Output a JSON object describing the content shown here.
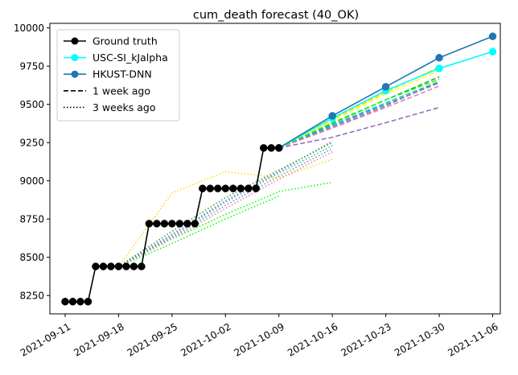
{
  "chart_data": {
    "type": "line",
    "title": "cum_death forecast (40_OK)",
    "xlabel": "",
    "ylabel": "",
    "x_ticks": [
      "2021-09-11",
      "2021-09-18",
      "2021-09-25",
      "2021-10-02",
      "2021-10-09",
      "2021-10-16",
      "2021-10-23",
      "2021-10-30",
      "2021-11-06"
    ],
    "y_ticks": [
      8250,
      8500,
      8750,
      9000,
      9250,
      9500,
      9750,
      10000
    ],
    "xlim": [
      "2021-09-09",
      "2021-11-07"
    ],
    "ylim": [
      8130,
      10030
    ],
    "legend_position": "top-left",
    "legend": [
      {
        "label": "Ground truth",
        "style": "solid-marker",
        "color": "#000000"
      },
      {
        "label": "USC-SI_kJalpha",
        "style": "solid-marker",
        "color": "#00ffff"
      },
      {
        "label": "HKUST-DNN",
        "style": "solid-marker",
        "color": "#1f77b4"
      },
      {
        "label": "1 week ago",
        "style": "dashed",
        "color": "#000000"
      },
      {
        "label": "3 weeks ago",
        "style": "dotted",
        "color": "#000000"
      }
    ],
    "series": [
      {
        "name": "Ground truth",
        "color": "#000000",
        "style": "solid",
        "marker": true,
        "x": [
          "2021-09-11",
          "2021-09-12",
          "2021-09-13",
          "2021-09-14",
          "2021-09-15",
          "2021-09-16",
          "2021-09-17",
          "2021-09-18",
          "2021-09-19",
          "2021-09-20",
          "2021-09-21",
          "2021-09-22",
          "2021-09-23",
          "2021-09-24",
          "2021-09-25",
          "2021-09-26",
          "2021-09-27",
          "2021-09-28",
          "2021-09-29",
          "2021-09-30",
          "2021-10-01",
          "2021-10-02",
          "2021-10-03",
          "2021-10-04",
          "2021-10-05",
          "2021-10-06",
          "2021-10-07",
          "2021-10-08",
          "2021-10-09"
        ],
        "y": [
          8210,
          8210,
          8210,
          8210,
          8440,
          8440,
          8440,
          8440,
          8440,
          8440,
          8440,
          8720,
          8720,
          8720,
          8720,
          8720,
          8720,
          8720,
          8950,
          8950,
          8950,
          8950,
          8950,
          8950,
          8950,
          8950,
          9215,
          9215,
          9215
        ]
      },
      {
        "name": "USC-SI_kJalpha",
        "color": "#00ffff",
        "style": "solid",
        "marker": true,
        "x": [
          "2021-10-09",
          "2021-10-16",
          "2021-10-23",
          "2021-10-30",
          "2021-11-06"
        ],
        "y": [
          9215,
          9410,
          9590,
          9735,
          9845
        ]
      },
      {
        "name": "HKUST-DNN",
        "color": "#1f77b4",
        "style": "solid",
        "marker": true,
        "x": [
          "2021-10-09",
          "2021-10-16",
          "2021-10-23",
          "2021-10-30",
          "2021-11-06"
        ],
        "y": [
          9215,
          9425,
          9615,
          9805,
          9945
        ]
      },
      {
        "color": "#ffd700",
        "style": "dashed",
        "x": [
          "2021-10-09",
          "2021-10-16",
          "2021-10-23",
          "2021-10-30"
        ],
        "y": [
          9215,
          9405,
          9580,
          9745
        ]
      },
      {
        "color": "#ffff00",
        "style": "dashed",
        "x": [
          "2021-10-09",
          "2021-10-16",
          "2021-10-23",
          "2021-10-30"
        ],
        "y": [
          9215,
          9395,
          9570,
          9720
        ]
      },
      {
        "color": "#2ca02c",
        "style": "dashed",
        "x": [
          "2021-10-09",
          "2021-10-16",
          "2021-10-23",
          "2021-10-30"
        ],
        "y": [
          9215,
          9375,
          9530,
          9680
        ]
      },
      {
        "color": "#17becf",
        "style": "dashed",
        "x": [
          "2021-10-09",
          "2021-10-16",
          "2021-10-23",
          "2021-10-30"
        ],
        "y": [
          9215,
          9365,
          9510,
          9650
        ]
      },
      {
        "color": "#3399dd",
        "style": "dashed",
        "x": [
          "2021-10-09",
          "2021-10-16",
          "2021-10-23",
          "2021-10-30"
        ],
        "y": [
          9215,
          9360,
          9500,
          9640
        ]
      },
      {
        "color": "#888888",
        "style": "dashed",
        "x": [
          "2021-10-09",
          "2021-10-16",
          "2021-10-23",
          "2021-10-30"
        ],
        "y": [
          9215,
          9350,
          9490,
          9650
        ]
      },
      {
        "color": "#e377c2",
        "style": "dashed",
        "x": [
          "2021-10-09",
          "2021-10-16",
          "2021-10-23",
          "2021-10-30"
        ],
        "y": [
          9215,
          9345,
          9480,
          9620
        ]
      },
      {
        "color": "#00ff00",
        "style": "dashed",
        "x": [
          "2021-10-09",
          "2021-10-16",
          "2021-10-23",
          "2021-10-30"
        ],
        "y": [
          9215,
          9380,
          9530,
          9665
        ]
      },
      {
        "color": "#9467bd",
        "style": "dashed",
        "x": [
          "2021-10-09",
          "2021-10-16",
          "2021-10-23",
          "2021-10-30"
        ],
        "y": [
          9215,
          9285,
          9380,
          9480
        ]
      },
      {
        "color": "#ffd700",
        "style": "dotted",
        "x": [
          "2021-09-18",
          "2021-09-25",
          "2021-10-02",
          "2021-10-09",
          "2021-10-16"
        ],
        "y": [
          8440,
          8920,
          9060,
          9020,
          9140
        ]
      },
      {
        "color": "#00ff00",
        "style": "dotted",
        "x": [
          "2021-09-18",
          "2021-09-25",
          "2021-10-02",
          "2021-10-09",
          "2021-10-16"
        ],
        "y": [
          8440,
          8620,
          8780,
          8930,
          8990
        ]
      },
      {
        "color": "#00ff00",
        "style": "dotted",
        "x": [
          "2021-09-18",
          "2021-09-25",
          "2021-10-02",
          "2021-10-09"
        ],
        "y": [
          8440,
          8590,
          8750,
          8900
        ]
      },
      {
        "color": "#17becf",
        "style": "dotted",
        "x": [
          "2021-09-18",
          "2021-09-25",
          "2021-10-02",
          "2021-10-09",
          "2021-10-16"
        ],
        "y": [
          8440,
          8640,
          8860,
          9050,
          9230
        ]
      },
      {
        "color": "#e377c2",
        "style": "dotted",
        "x": [
          "2021-09-18",
          "2021-09-25",
          "2021-10-02",
          "2021-10-09",
          "2021-10-16"
        ],
        "y": [
          8440,
          8620,
          8820,
          9010,
          9190
        ]
      },
      {
        "color": "#9467bd",
        "style": "dotted",
        "x": [
          "2021-09-18",
          "2021-09-25",
          "2021-10-02",
          "2021-10-09",
          "2021-10-16"
        ],
        "y": [
          8440,
          8650,
          8870,
          9060,
          9260
        ]
      },
      {
        "color": "#2ca02c",
        "style": "dotted",
        "x": [
          "2021-09-18",
          "2021-09-25",
          "2021-10-02",
          "2021-10-09",
          "2021-10-16"
        ],
        "y": [
          8440,
          8670,
          8890,
          9070,
          9250
        ]
      },
      {
        "color": "#888888",
        "style": "dotted",
        "x": [
          "2021-09-18",
          "2021-09-25",
          "2021-10-02",
          "2021-10-09",
          "2021-10-16"
        ],
        "y": [
          8440,
          8630,
          8840,
          9030,
          9210
        ]
      }
    ]
  }
}
